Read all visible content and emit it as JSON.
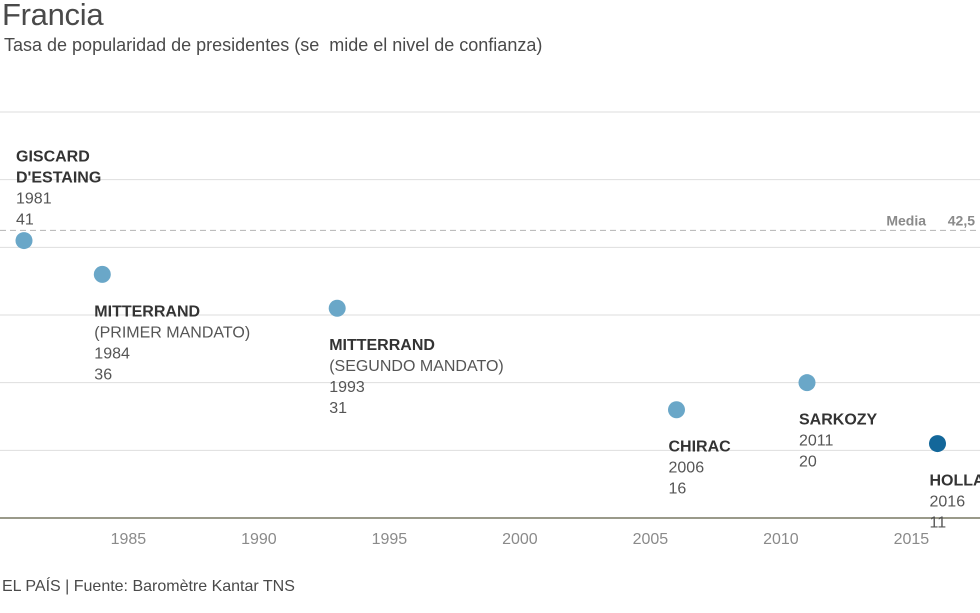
{
  "header": {
    "title": "Francia",
    "subtitle": "Tasa de popularidad de presidentes (se  mide el nivel de confianza)"
  },
  "footer": {
    "source": "EL PAÍS | Fuente: Baromètre Kantar TNS"
  },
  "colors": {
    "point": "#6aa7c8",
    "highlight": "#13679a",
    "grid": "#dedede",
    "axis": "#9a9a8a",
    "mean_line": "#bdbdbd"
  },
  "chart_data": {
    "type": "scatter",
    "title": "Francia",
    "subtitle": "Tasa de popularidad de presidentes (se  mide el nivel de confianza)",
    "xlabel": "",
    "ylabel": "",
    "xlim": [
      1980.5,
      2021
    ],
    "ylim": [
      0,
      60
    ],
    "xticks": [
      1985,
      1990,
      1995,
      2000,
      2005,
      2010,
      2015
    ],
    "grid": true,
    "mean": {
      "label": "Media",
      "value_text": "42,5",
      "value": 42.5
    },
    "points": [
      {
        "name_lines": [
          "GISCARD",
          "D'ESTAING"
        ],
        "subtitle": "",
        "year": 1981,
        "value": 41,
        "highlight": false
      },
      {
        "name_lines": [
          "MITTERRAND"
        ],
        "subtitle": "(PRIMER MANDATO)",
        "year": 1984,
        "value": 36,
        "highlight": false
      },
      {
        "name_lines": [
          "MITTERRAND"
        ],
        "subtitle": "(SEGUNDO MANDATO)",
        "year": 1993,
        "value": 31,
        "highlight": false
      },
      {
        "name_lines": [
          "CHIRAC"
        ],
        "subtitle": "",
        "year": 2006,
        "value": 16,
        "highlight": false
      },
      {
        "name_lines": [
          "SARKOZY"
        ],
        "subtitle": "",
        "year": 2011,
        "value": 20,
        "highlight": false
      },
      {
        "name_lines": [
          "HOLLANDE"
        ],
        "subtitle": "",
        "year": 2016,
        "value": 11,
        "highlight": true
      }
    ]
  }
}
